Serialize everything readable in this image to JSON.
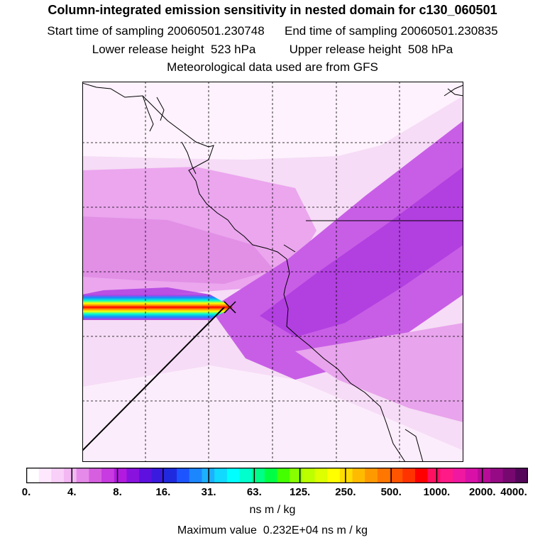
{
  "header": {
    "title": "Column-integrated emission sensitivity in nested domain for c130_060501",
    "start_label": "Start time of sampling",
    "start_value": "20060501.230748",
    "end_label": "End time of sampling",
    "end_value": "20060501.230835",
    "lower_label": "Lower release height",
    "lower_value": "523 hPa",
    "upper_label": "Upper release height",
    "upper_value": "508 hPa",
    "met_source": "Meteorological data used are from GFS"
  },
  "colorbar": {
    "tick_labels": [
      "0.",
      "4.",
      "8.",
      "16.",
      "31.",
      "63.",
      "125.",
      "250.",
      "500.",
      "1000.",
      "2000.",
      "4000."
    ],
    "colors": [
      "#ffffff",
      "#fde8fd",
      "#f8d0f8",
      "#f3b8f3",
      "#e58ae8",
      "#d65fe0",
      "#c83be0",
      "#b21bdf",
      "#8a12df",
      "#5d10df",
      "#3a1adf",
      "#1f2adf",
      "#1c55ff",
      "#1c86ff",
      "#1cb0ff",
      "#11d9ff",
      "#00ffff",
      "#00ffcc",
      "#00ff88",
      "#00ff44",
      "#44ff00",
      "#88ff00",
      "#bbff00",
      "#ddff00",
      "#ffff00",
      "#ffdd00",
      "#ffbb00",
      "#ff9900",
      "#ff7700",
      "#ff5500",
      "#ff3300",
      "#ff0000",
      "#ff1060",
      "#ff1a88",
      "#f018a0",
      "#d810a8",
      "#b80c98",
      "#960a85",
      "#760870",
      "#55065a"
    ],
    "units": "ns m / kg",
    "max_label": "Maximum value",
    "max_value": "0.232E+04",
    "max_units": "ns m / kg"
  }
}
